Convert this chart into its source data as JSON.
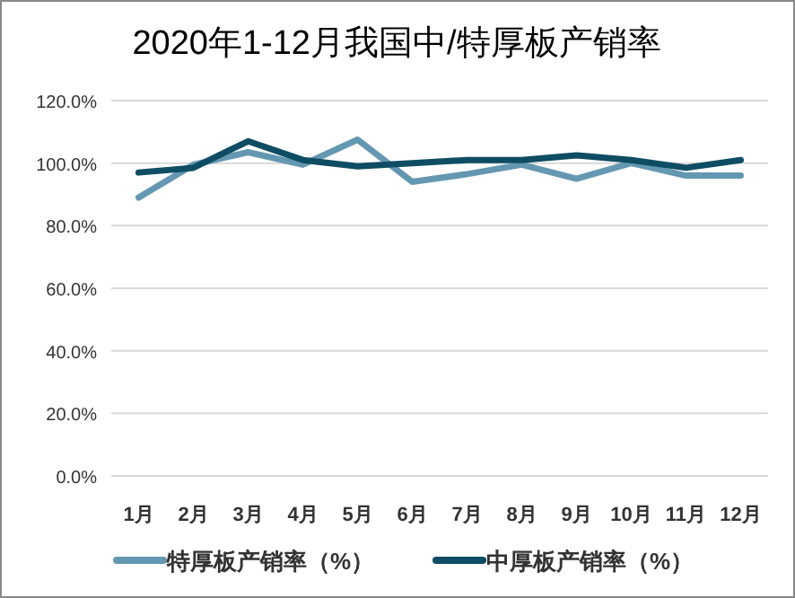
{
  "chart_data": {
    "type": "line",
    "title": "2020年1-12月我国中/特厚板产销率",
    "categories": [
      "1月",
      "2月",
      "3月",
      "4月",
      "5月",
      "6月",
      "7月",
      "8月",
      "9月",
      "10月",
      "11月",
      "12月"
    ],
    "series": [
      {
        "name": "特厚板产销率（%）",
        "color": "#6497b1",
        "values": [
          89,
          99.5,
          103.5,
          99.5,
          107.5,
          94,
          96.5,
          99.5,
          95,
          100,
          96,
          96
        ]
      },
      {
        "name": "中厚板产销率（%）",
        "color": "#0e4d64",
        "values": [
          97,
          98.5,
          107,
          101,
          99,
          100,
          101,
          101,
          102.5,
          101,
          98.5,
          101
        ]
      }
    ],
    "ylim": [
      0,
      120
    ],
    "yticks": [
      {
        "value": 0,
        "label": "0.0%"
      },
      {
        "value": 20,
        "label": "20.0%"
      },
      {
        "value": 40,
        "label": "40.0%"
      },
      {
        "value": 60,
        "label": "60.0%"
      },
      {
        "value": 80,
        "label": "80.0%"
      },
      {
        "value": 100,
        "label": "100.0%"
      },
      {
        "value": 120,
        "label": "120.0%"
      }
    ],
    "grid": "y",
    "legend": "bottom",
    "line_style": "solid"
  }
}
